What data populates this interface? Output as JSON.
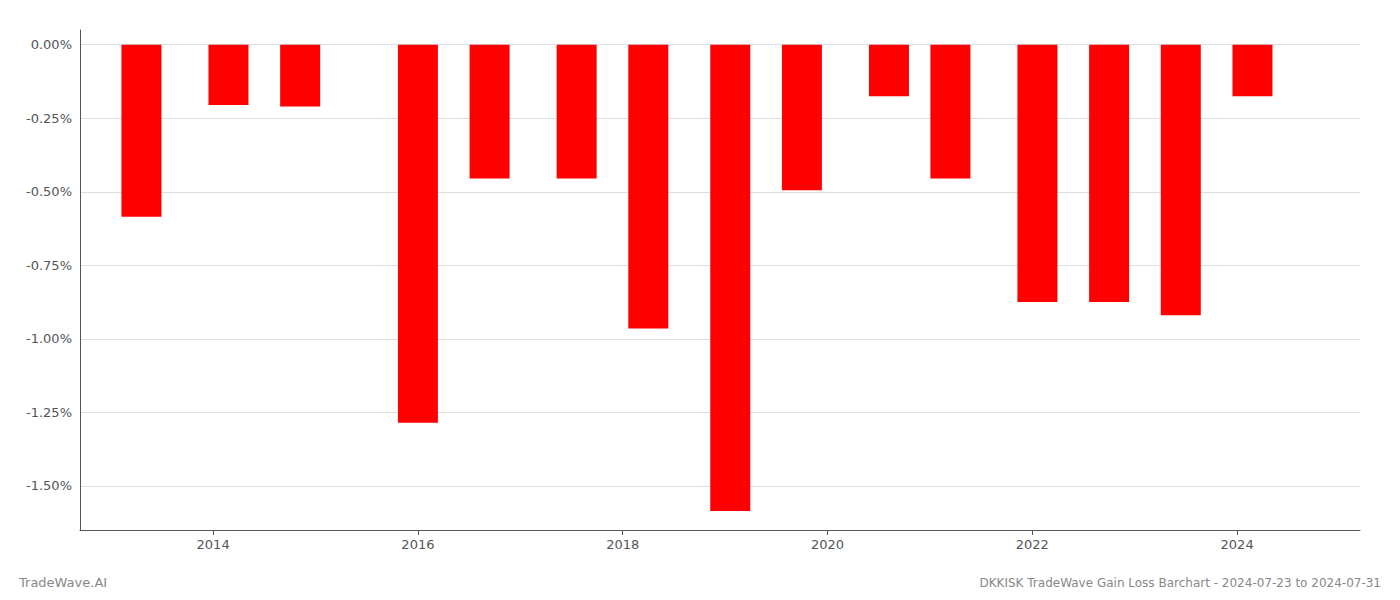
{
  "chart_data": {
    "type": "bar",
    "title": "DKKISK TradeWave Gain Loss Barchart - 2024-07-23 to 2024-07-31",
    "annotations": [
      "TradeWave.AI"
    ],
    "x": [
      2013.3,
      2014.15,
      2014.85,
      2016.0,
      2016.7,
      2017.55,
      2018.25,
      2019.05,
      2019.75,
      2020.6,
      2021.2,
      2022.05,
      2022.75,
      2023.45,
      2024.15
    ],
    "values": [
      -0.585,
      -0.205,
      -0.21,
      -1.285,
      -0.455,
      -0.455,
      -0.965,
      -1.585,
      -0.495,
      -0.175,
      -0.455,
      -0.875,
      -0.875,
      -0.92,
      -0.175
    ],
    "color": "#ff0000",
    "xlim": [
      2012.7,
      2025.2
    ],
    "xticks": [
      2014,
      2016,
      2018,
      2020,
      2022,
      2024
    ],
    "ylim": [
      -1.65,
      0.05
    ],
    "yticks": [
      {
        "value": 0.0,
        "label": "0.00%"
      },
      {
        "value": -0.25,
        "label": "-0.25%"
      },
      {
        "value": -0.5,
        "label": "-0.50%"
      },
      {
        "value": -0.75,
        "label": "-0.75%"
      },
      {
        "value": -1.0,
        "label": "-1.00%"
      },
      {
        "value": -1.25,
        "label": "-1.25%"
      },
      {
        "value": -1.5,
        "label": "-1.50%"
      }
    ],
    "grid": true
  }
}
